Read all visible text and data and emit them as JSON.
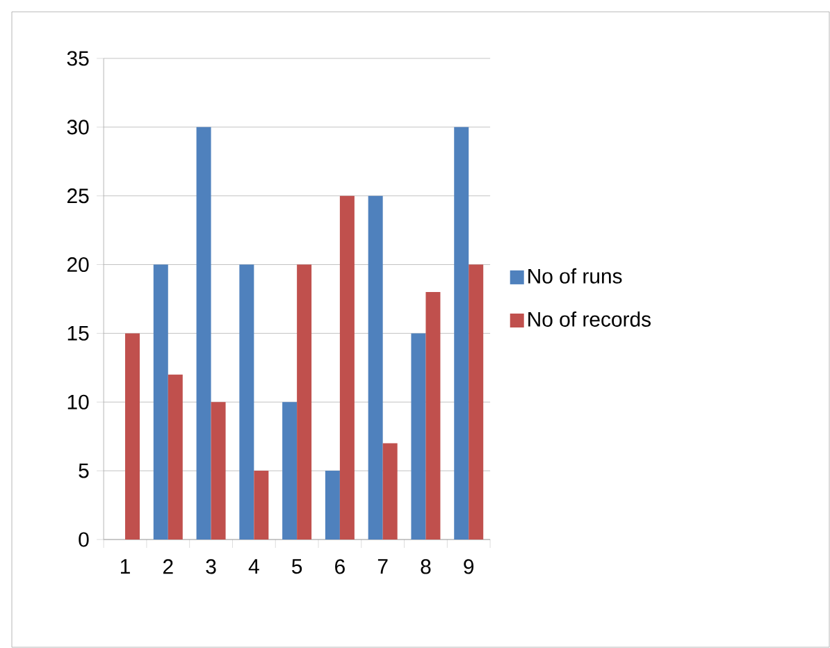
{
  "chart_data": {
    "type": "bar",
    "categories": [
      "1",
      "2",
      "3",
      "4",
      "5",
      "6",
      "7",
      "8",
      "9"
    ],
    "series": [
      {
        "name": "No of runs",
        "color": "#4f81bd",
        "values": [
          0,
          20,
          30,
          20,
          10,
          5,
          25,
          15,
          30
        ]
      },
      {
        "name": "No of records",
        "color": "#c0504d",
        "values": [
          15,
          12,
          10,
          5,
          20,
          25,
          7,
          18,
          20
        ]
      }
    ],
    "ylim": [
      0,
      35
    ],
    "yticks": [
      0,
      5,
      10,
      15,
      20,
      25,
      30,
      35
    ],
    "grid": "y",
    "legend": "right"
  }
}
